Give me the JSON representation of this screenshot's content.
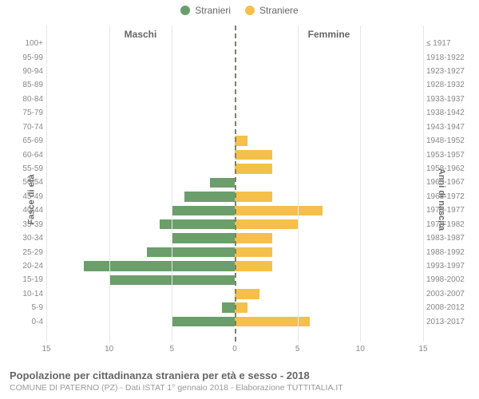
{
  "legend": {
    "male": {
      "label": "Stranieri",
      "color": "#6b9e6b"
    },
    "female": {
      "label": "Straniere",
      "color": "#f4c04a"
    }
  },
  "side_titles": {
    "male": "Maschi",
    "female": "Femmine"
  },
  "yaxis_left_title": "Fasce di età",
  "yaxis_right_title": "Anni di nascita",
  "xaxis": {
    "max": 15,
    "ticks": [
      15,
      10,
      5,
      0,
      5,
      10,
      15
    ]
  },
  "grid_color": "#e6e6e6",
  "center_line_color": "#808066",
  "background": "#ffffff",
  "text_color": "#666666",
  "tick_color": "#888888",
  "title": "Popolazione per cittadinanza straniera per età e sesso - 2018",
  "subtitle": "COMUNE DI PATERNO (PZ) - Dati ISTAT 1° gennaio 2018 - Elaborazione TUTTITALIA.IT",
  "rows": [
    {
      "age": "100+",
      "birth": "≤ 1917",
      "m": 0,
      "f": 0
    },
    {
      "age": "95-99",
      "birth": "1918-1922",
      "m": 0,
      "f": 0
    },
    {
      "age": "90-94",
      "birth": "1923-1927",
      "m": 0,
      "f": 0
    },
    {
      "age": "85-89",
      "birth": "1928-1932",
      "m": 0,
      "f": 0
    },
    {
      "age": "80-84",
      "birth": "1933-1937",
      "m": 0,
      "f": 0
    },
    {
      "age": "75-79",
      "birth": "1938-1942",
      "m": 0,
      "f": 0
    },
    {
      "age": "70-74",
      "birth": "1943-1947",
      "m": 0,
      "f": 0
    },
    {
      "age": "65-69",
      "birth": "1948-1952",
      "m": 0,
      "f": 1
    },
    {
      "age": "60-64",
      "birth": "1953-1957",
      "m": 0,
      "f": 3
    },
    {
      "age": "55-59",
      "birth": "1958-1962",
      "m": 0,
      "f": 3
    },
    {
      "age": "50-54",
      "birth": "1963-1967",
      "m": 2,
      "f": 0
    },
    {
      "age": "45-49",
      "birth": "1968-1972",
      "m": 4,
      "f": 3
    },
    {
      "age": "40-44",
      "birth": "1973-1977",
      "m": 5,
      "f": 7
    },
    {
      "age": "35-39",
      "birth": "1978-1982",
      "m": 6,
      "f": 5
    },
    {
      "age": "30-34",
      "birth": "1983-1987",
      "m": 5,
      "f": 3
    },
    {
      "age": "25-29",
      "birth": "1988-1992",
      "m": 7,
      "f": 3
    },
    {
      "age": "20-24",
      "birth": "1993-1997",
      "m": 12,
      "f": 3
    },
    {
      "age": "15-19",
      "birth": "1998-2002",
      "m": 10,
      "f": 0
    },
    {
      "age": "10-14",
      "birth": "2003-2007",
      "m": 0,
      "f": 2
    },
    {
      "age": "5-9",
      "birth": "2008-2012",
      "m": 1,
      "f": 1
    },
    {
      "age": "0-4",
      "birth": "2013-2017",
      "m": 5,
      "f": 6
    }
  ]
}
